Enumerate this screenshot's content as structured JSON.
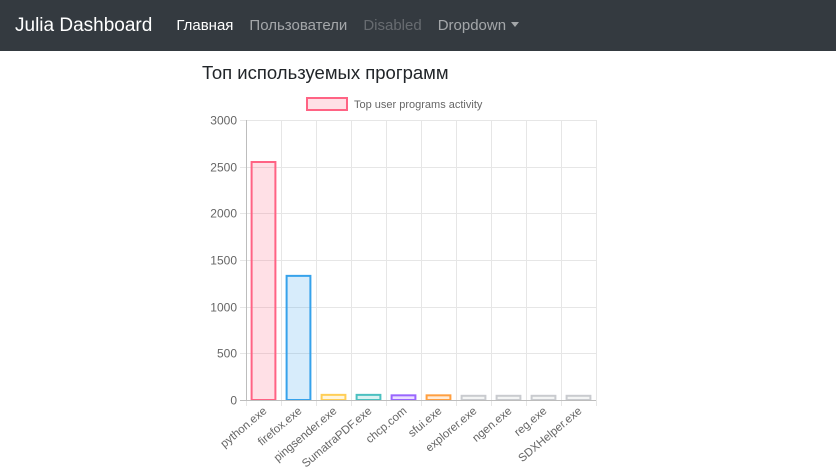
{
  "navbar": {
    "brand": "Julia Dashboard",
    "items": [
      {
        "label": "Главная",
        "state": "active"
      },
      {
        "label": "Пользователи",
        "state": "normal"
      },
      {
        "label": "Disabled",
        "state": "disabled"
      },
      {
        "label": "Dropdown",
        "state": "dropdown"
      }
    ]
  },
  "page": {
    "title": "Топ используемых программ"
  },
  "chart_data": {
    "type": "bar",
    "title": "",
    "xlabel": "",
    "ylabel": "",
    "ylim": [
      0,
      3000
    ],
    "yticks": [
      0,
      500,
      1000,
      1500,
      2000,
      2500,
      3000
    ],
    "grid": true,
    "legend_position": "top",
    "categories": [
      "python.exe",
      "firefox.exe",
      "pingsender.exe",
      "SumatraPDF.exe",
      "chcp.com",
      "sfui.exe",
      "explorer.exe",
      "ngen.exe",
      "reg.exe",
      "SDXHelper.exe"
    ],
    "series": [
      {
        "name": "Top user programs activity",
        "values": [
          2550,
          1330,
          55,
          55,
          50,
          50,
          45,
          45,
          45,
          45
        ],
        "border_colors": [
          "#ff6384",
          "#36a2eb",
          "#ffce56",
          "#4bc0c0",
          "#9966ff",
          "#ff9f40",
          "#c9cbcf",
          "#c9cbcf",
          "#c9cbcf",
          "#c9cbcf"
        ],
        "fill_colors": [
          "rgba(255,99,132,0.2)",
          "rgba(54,162,235,0.2)",
          "rgba(255,206,86,0.2)",
          "rgba(75,192,192,0.2)",
          "rgba(153,102,255,0.2)",
          "rgba(255,159,64,0.2)",
          "rgba(201,203,207,0.2)",
          "rgba(201,203,207,0.2)",
          "rgba(201,203,207,0.2)",
          "rgba(201,203,207,0.2)"
        ]
      }
    ],
    "legend_fill": "rgba(255,99,132,0.2)",
    "legend_border": "#ff6384"
  }
}
